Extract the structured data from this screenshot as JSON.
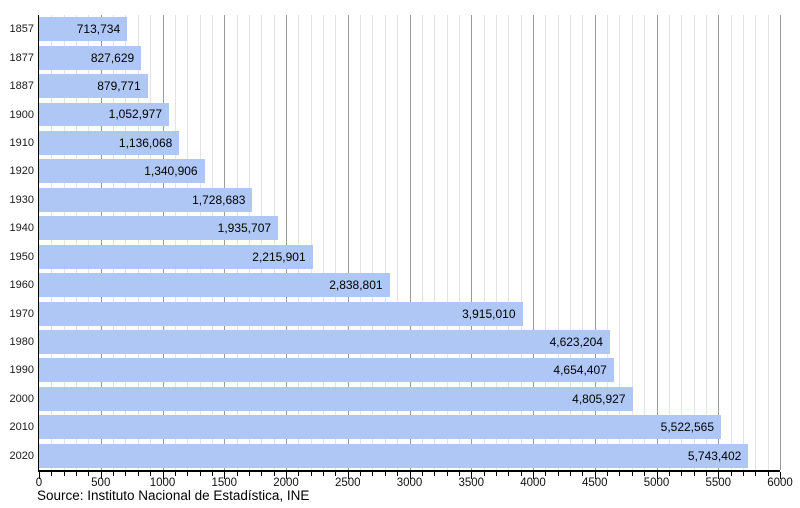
{
  "chart_data": {
    "type": "bar",
    "orientation": "horizontal",
    "title": "",
    "categories": [
      "1857",
      "1877",
      "1887",
      "1900",
      "1910",
      "1920",
      "1930",
      "1940",
      "1950",
      "1960",
      "1970",
      "1980",
      "1990",
      "2000",
      "2010",
      "2020"
    ],
    "values": [
      713734,
      827629,
      879771,
      1052977,
      1136068,
      1340906,
      1728683,
      1935707,
      2215901,
      2838801,
      3915010,
      4623204,
      4654407,
      4805927,
      5522565,
      5743402
    ],
    "value_labels": [
      "713,734",
      "827,629",
      "879,771",
      "1,052,977",
      "1,136,068",
      "1,340,906",
      "1,728,683",
      "1,935,707",
      "2,215,901",
      "2,838,801",
      "3,915,010",
      "4,623,204",
      "4,654,407",
      "4,805,927",
      "5,522,565",
      "5,743,402"
    ],
    "xlim": [
      0,
      6000
    ],
    "value_axis_divisor": 1000,
    "x_minor_tick_step": 100,
    "x_major_tick_step": 500,
    "x_tick_labels": [
      "0",
      "500",
      "1000",
      "1500",
      "2000",
      "2500",
      "3000",
      "3500",
      "4000",
      "4500",
      "5000",
      "5500",
      "6000"
    ],
    "grid": {
      "on": true,
      "minor_every": 100,
      "major_every": 500
    },
    "legend": null
  },
  "source": {
    "text": "Source: Instituto Nacional de Estadística, INE"
  },
  "colors": {
    "background": "#ffffff",
    "bar_fill": "#aec7f5",
    "grid_minor": "#e3e3e3",
    "grid_major": "#9a9a9a",
    "axis": "#000000",
    "value_text": "#000000",
    "tick_text": "#1a1a1a"
  }
}
